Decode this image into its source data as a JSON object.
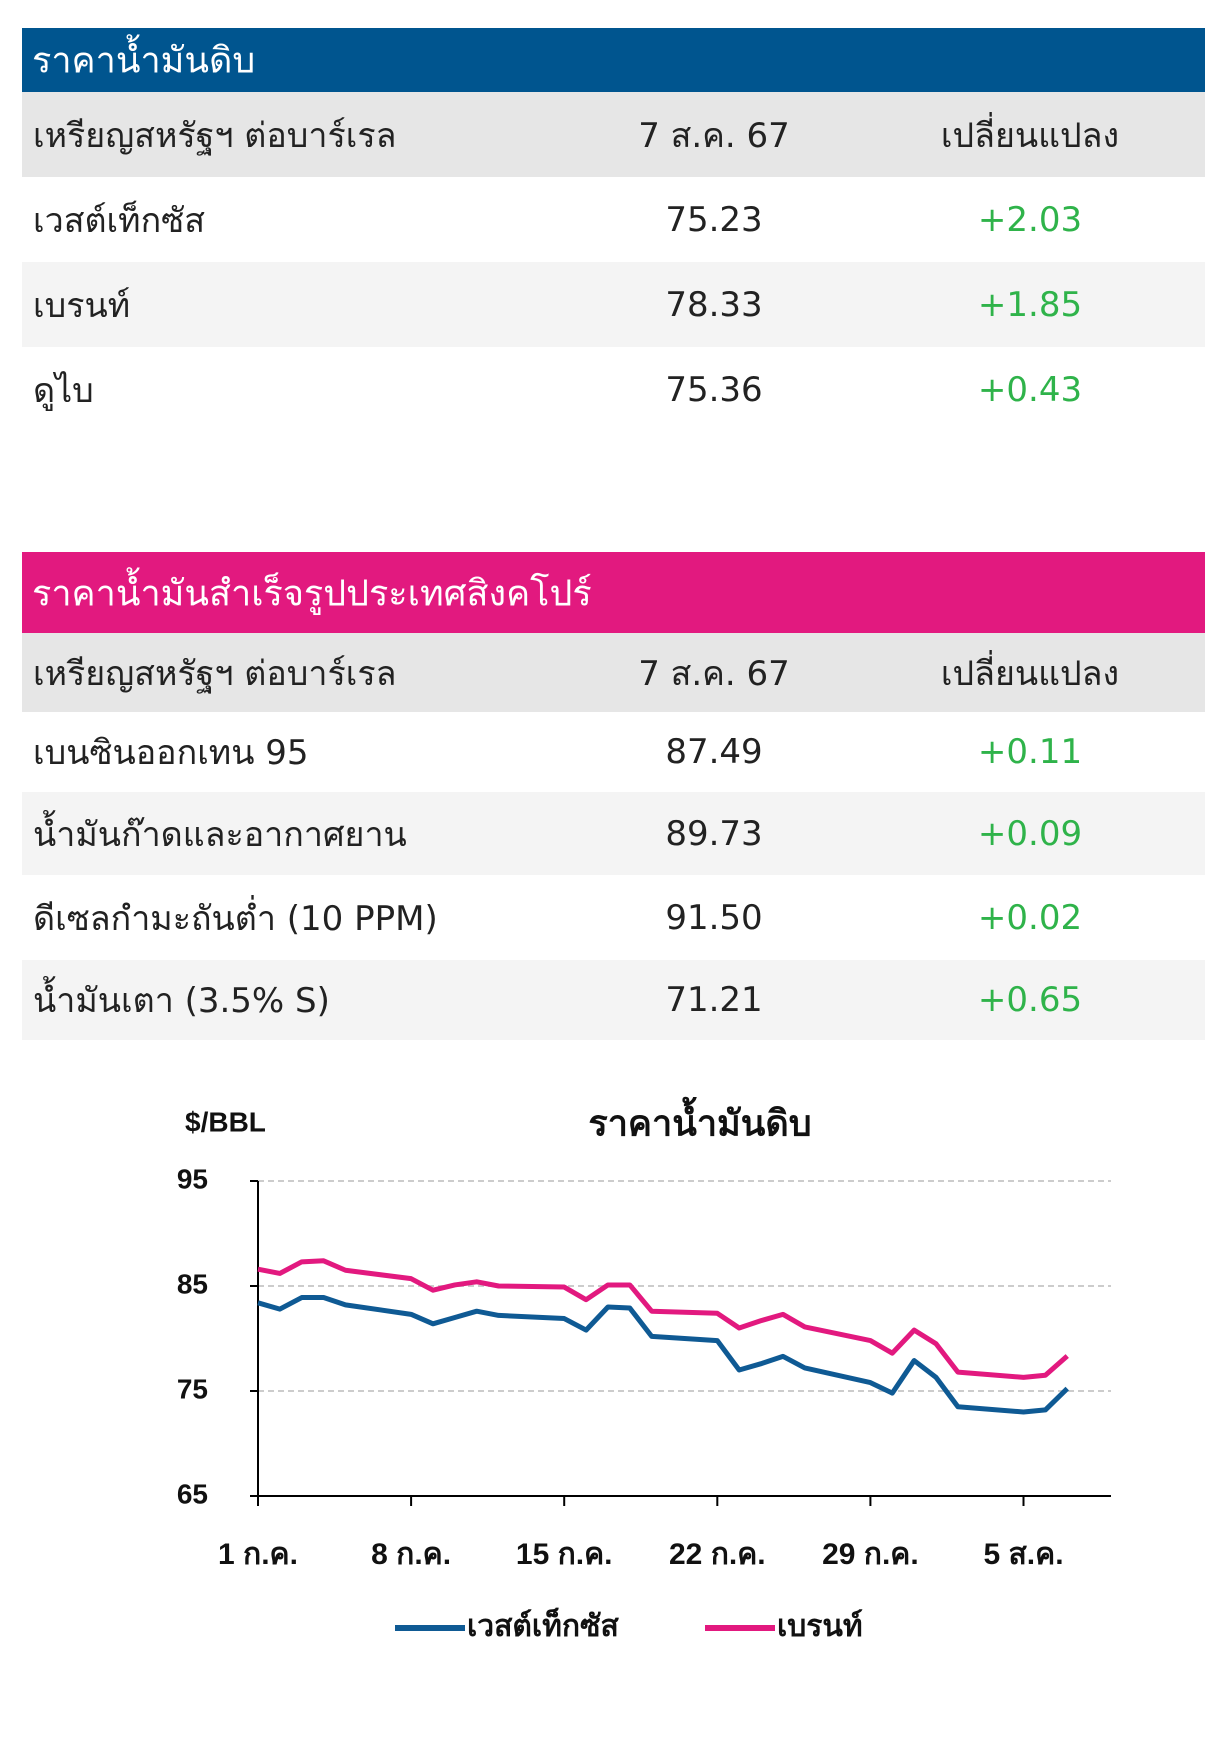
{
  "tables": [
    {
      "title": "ราคาน้ำมันดิบ",
      "title_color": "#00558f",
      "header": [
        "เหรียญสหรัฐฯ ต่อบาร์เรล",
        "7 ส.ค. 67",
        "เปลี่ยนแปลง"
      ],
      "rows": [
        [
          "เวสต์เท็กซัส",
          "75.23",
          "+2.03"
        ],
        [
          "เบรนท์",
          "78.33",
          "+1.85"
        ],
        [
          "ดูไบ",
          "75.36",
          "+0.43"
        ]
      ]
    },
    {
      "title": "ราคาน้ำมันสำเร็จรูปประเทศสิงคโปร์",
      "title_color": "#e2197f",
      "header": [
        "เหรียญสหรัฐฯ ต่อบาร์เรล",
        "7 ส.ค. 67",
        "เปลี่ยนแปลง"
      ],
      "rows": [
        [
          "เบนซินออกเทน 95",
          "87.49",
          "+0.11"
        ],
        [
          "น้ำมันก๊าดและอากาศยาน",
          "89.73",
          "+0.09"
        ],
        [
          "ดีเซลกำมะถันต่ำ (10 PPM)",
          "91.50",
          "+0.02"
        ],
        [
          "น้ำมันเตา (3.5% S)",
          "71.21",
          "+0.65"
        ]
      ]
    }
  ],
  "chart_data": {
    "type": "line",
    "title": "ราคาน้ำมันดิบ",
    "y_label": "$/BBL",
    "x": [
      0,
      1,
      2,
      3,
      4,
      7,
      8,
      9,
      10,
      11,
      14,
      15,
      16,
      17,
      18,
      21,
      22,
      23,
      24,
      25,
      28,
      29,
      30,
      31,
      32,
      35,
      36,
      37
    ],
    "series": [
      {
        "name": "เวสต์เท็กซัส",
        "color": "#0f5a94",
        "values": [
          83.4,
          82.8,
          83.9,
          83.9,
          83.2,
          82.3,
          81.4,
          82.0,
          82.6,
          82.2,
          81.9,
          80.8,
          83.0,
          82.9,
          80.2,
          79.8,
          77.0,
          77.6,
          78.3,
          77.2,
          75.8,
          74.8,
          77.9,
          76.3,
          73.5,
          73.0,
          73.2,
          75.23
        ]
      },
      {
        "name": "เบรนท์",
        "color": "#e2197f",
        "values": [
          86.6,
          86.2,
          87.3,
          87.4,
          86.5,
          85.7,
          84.6,
          85.1,
          85.4,
          85.0,
          84.9,
          83.7,
          85.1,
          85.1,
          82.6,
          82.4,
          81.0,
          81.7,
          82.3,
          81.1,
          79.8,
          78.6,
          80.8,
          79.5,
          76.8,
          76.3,
          76.5,
          78.33
        ]
      }
    ],
    "xlim": [
      0,
      39
    ],
    "xticks": [
      {
        "value": 0,
        "label": "1 ก.ค."
      },
      {
        "value": 7,
        "label": "8 ก.ค."
      },
      {
        "value": 14,
        "label": "15 ก.ค."
      },
      {
        "value": 21,
        "label": "22 ก.ค."
      },
      {
        "value": 28,
        "label": "29 ก.ค."
      },
      {
        "value": 35,
        "label": "5 ส.ค."
      }
    ],
    "ylim": [
      65,
      95
    ],
    "yticks": [
      65,
      75,
      85,
      95
    ],
    "grid": true,
    "legend": "bottom"
  }
}
